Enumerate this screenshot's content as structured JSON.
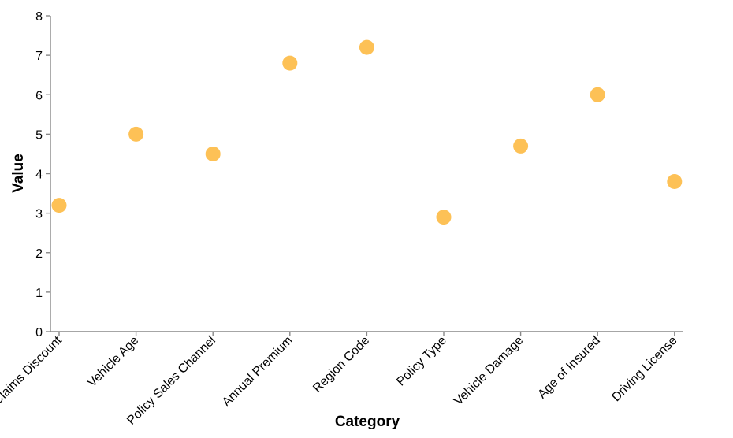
{
  "chart_data": {
    "type": "scatter",
    "xlabel": "Category",
    "ylabel": "Value",
    "ylim": [
      0,
      8
    ],
    "yticks": [
      0,
      1,
      2,
      3,
      4,
      5,
      6,
      7,
      8
    ],
    "grid": false,
    "point_color": "#fdbe4d",
    "categories": [
      "No Claims Discount",
      "Vehicle Age",
      "Policy Sales Channel",
      "Annual Premium",
      "Region Code",
      "Policy Type",
      "Vehicle Damage",
      "Age of Insured",
      "Driving License"
    ],
    "values": [
      3.2,
      5.0,
      4.5,
      6.8,
      7.2,
      2.9,
      4.7,
      6.0,
      3.8
    ]
  }
}
